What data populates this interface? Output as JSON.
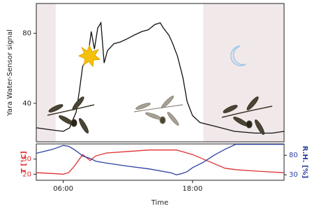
{
  "chart_data": [
    {
      "type": "line",
      "ylabel": "Yara Water-Sensor signal",
      "xlim": [
        3.5,
        26.5
      ],
      "ylim": [
        18,
        97
      ],
      "yticks": [
        40,
        80
      ],
      "shaded_ranges": [
        [
          3.5,
          5.3
        ],
        [
          19.0,
          26.5
        ]
      ],
      "shade_color": "#f1e8ea",
      "x": [
        3.5,
        4.7,
        6,
        6.6,
        7.2,
        7.5,
        7.8,
        8.3,
        8.6,
        8.9,
        9.2,
        9.5,
        9.8,
        10.1,
        10.7,
        11.3,
        12,
        12.6,
        13.3,
        13.9,
        14.5,
        15,
        15.3,
        15.8,
        16.1,
        16.6,
        17.1,
        17.5,
        18,
        18.7,
        20,
        21.9,
        23.8,
        25.4,
        26.5
      ],
      "series": [
        {
          "color": "#111111",
          "values": [
            26,
            25,
            24,
            26,
            35,
            47,
            61,
            67,
            81,
            71,
            83,
            86,
            63,
            70,
            74,
            75,
            77,
            79,
            81,
            82,
            85,
            86,
            83,
            79,
            75,
            67,
            55,
            41,
            33,
            29,
            27,
            24,
            23,
            23,
            24
          ]
        }
      ]
    },
    {
      "type": "line",
      "xlabel": "Time",
      "ylabel": "T [°C]",
      "y2label": "R.H. [%]",
      "xlim": [
        3.5,
        26.5
      ],
      "xticks": [
        {
          "value": 6,
          "label": "06:00"
        },
        {
          "value": 18,
          "label": "18:00"
        }
      ],
      "ylim": [
        16,
        40
      ],
      "yticks": [
        20,
        30
      ],
      "y2lim": [
        16,
        109
      ],
      "y2ticks": [
        30,
        80
      ],
      "x": [
        3.5,
        5,
        6,
        6.5,
        7,
        7.5,
        7.8,
        8.5,
        9,
        10,
        12,
        14,
        16,
        16.5,
        17,
        17.5,
        18,
        19,
        20,
        21,
        22,
        24,
        26.5
      ],
      "series": [
        {
          "color": "#e03030",
          "values": [
            21,
            20.5,
            20,
            21,
            25,
            30,
            33,
            29,
            32,
            34,
            35,
            36,
            36,
            36,
            35,
            34,
            33,
            30,
            27,
            24,
            23,
            22,
            21
          ]
        },
        {
          "color": "#2c40a0",
          "axis": "y2",
          "values": [
            85,
            95,
            105,
            103,
            95,
            85,
            78,
            72,
            65,
            60,
            52,
            45,
            35,
            30,
            33,
            38,
            48,
            62,
            80,
            95,
            108,
            108,
            108
          ]
        }
      ]
    }
  ]
}
